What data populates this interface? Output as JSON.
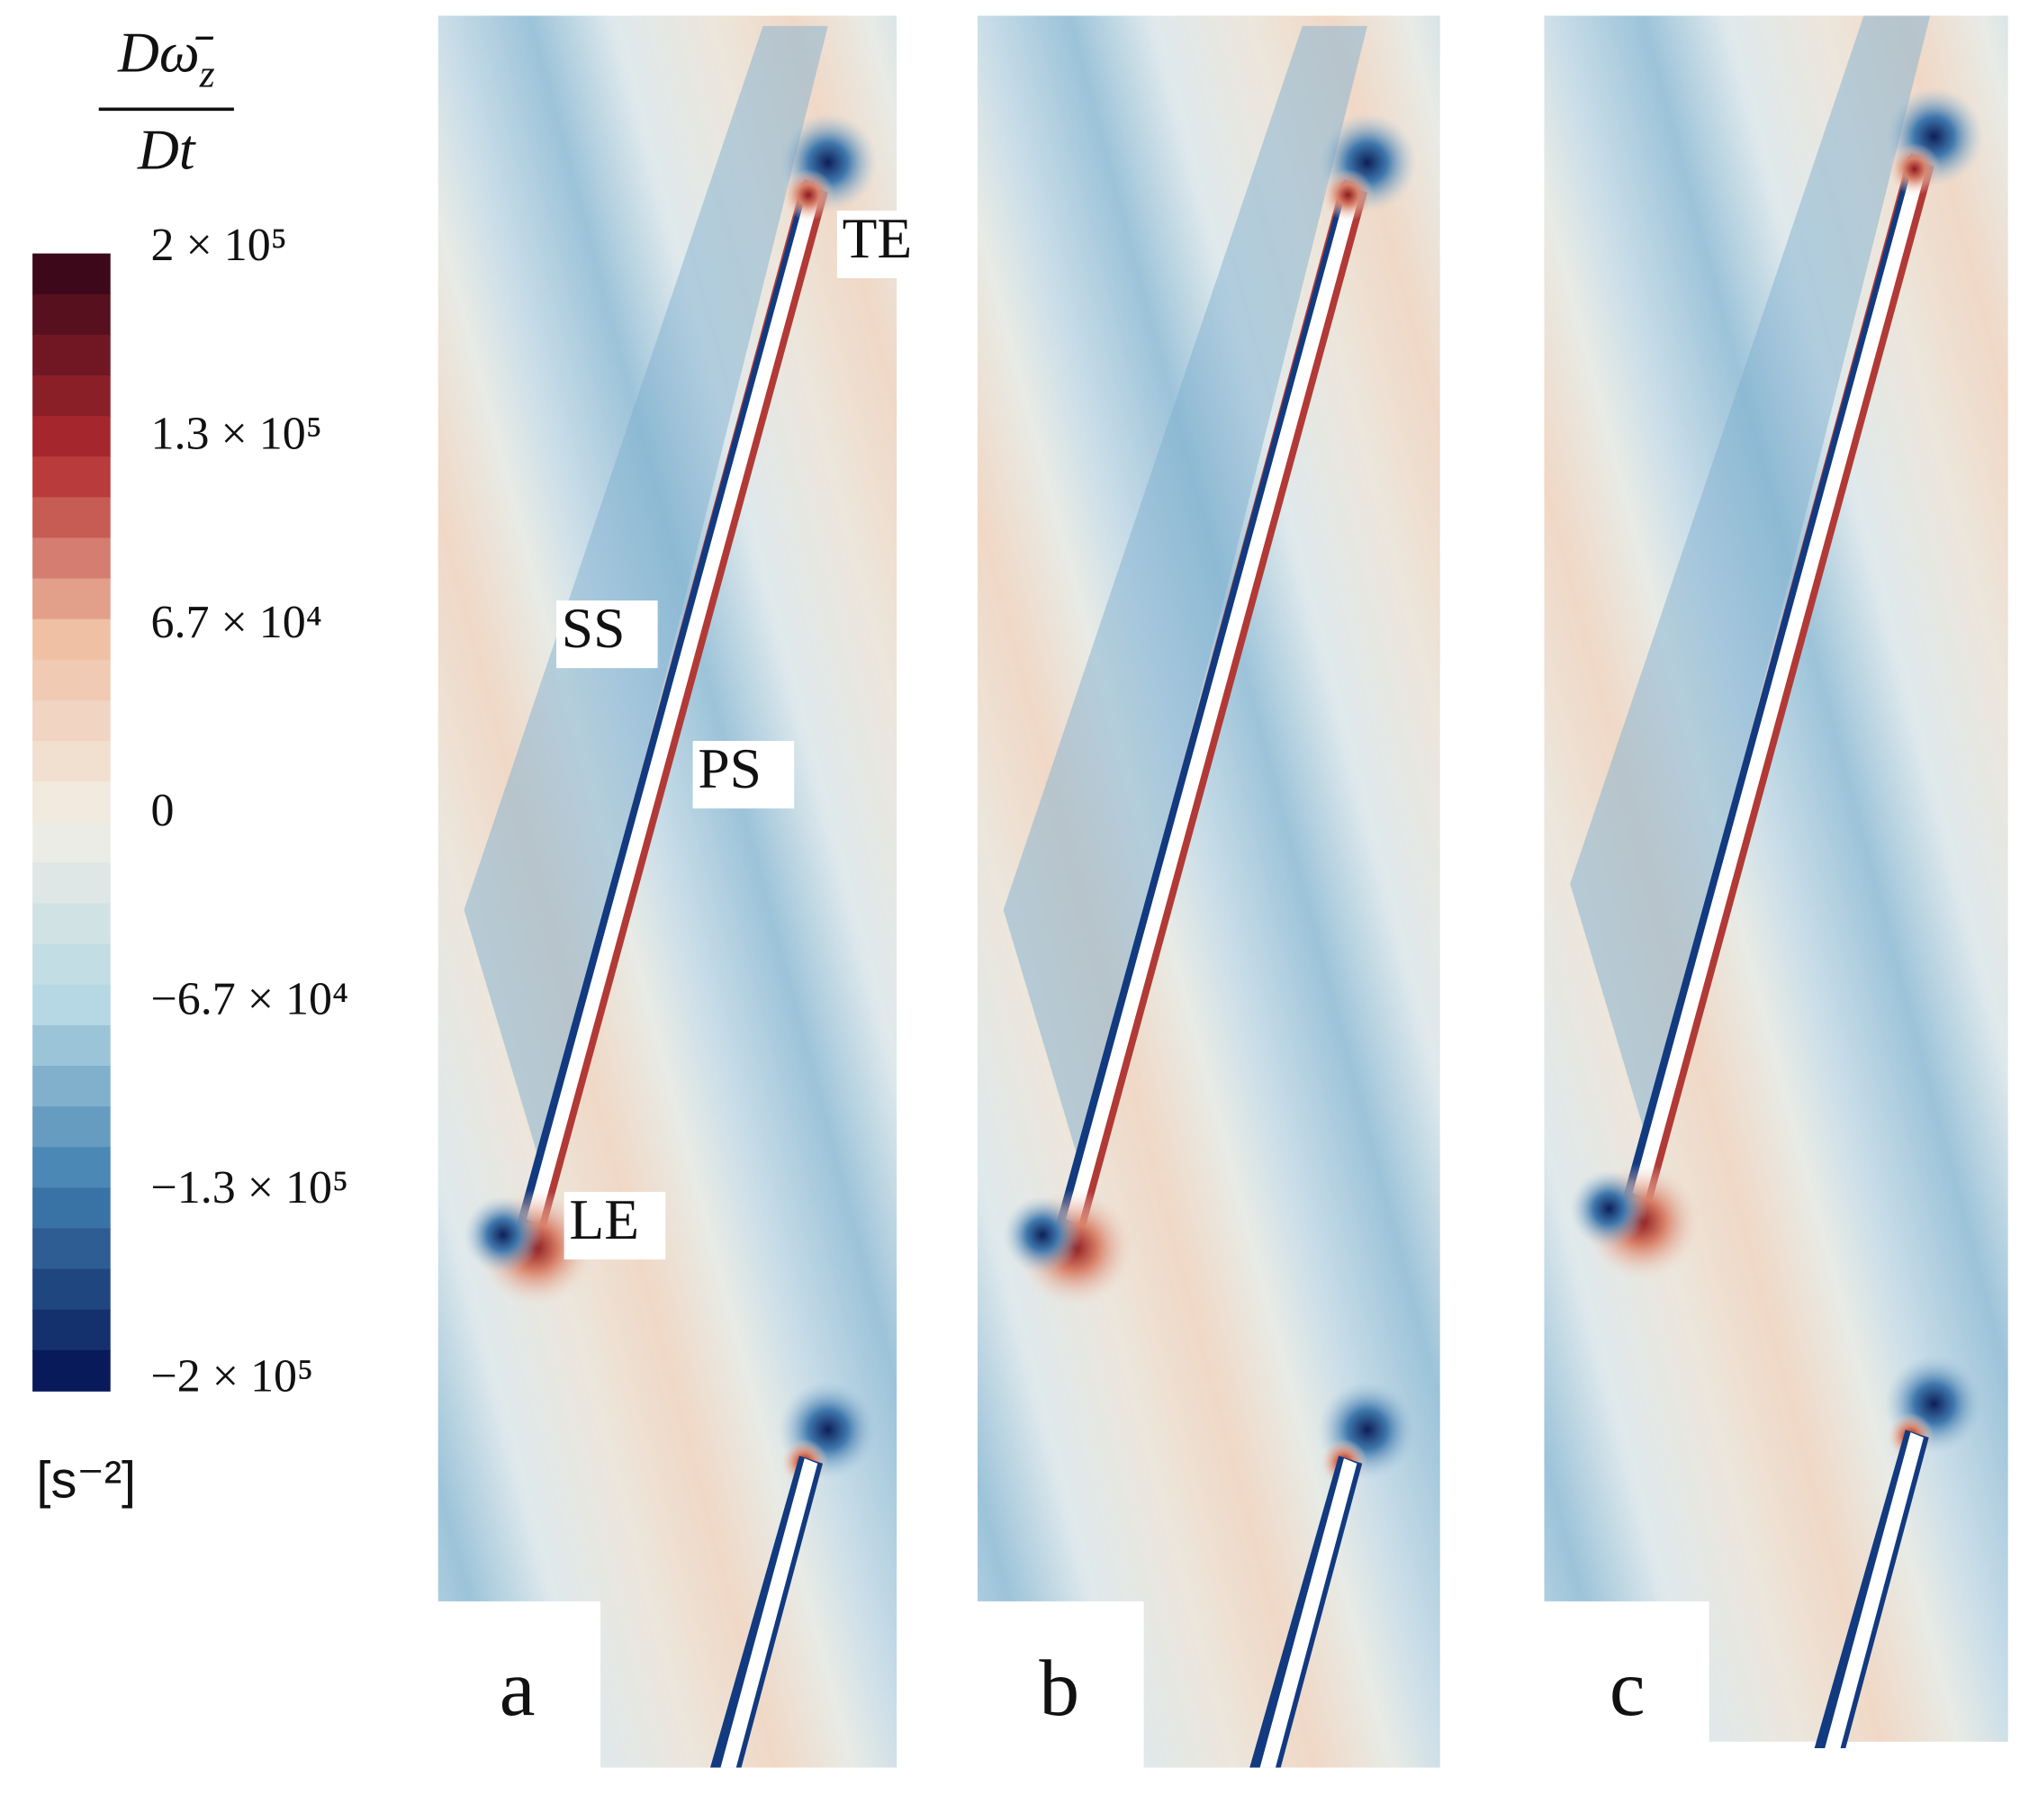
{
  "colorbar": {
    "title": {
      "numerator": "Dω̄",
      "numerator_subscript": "z",
      "denominator": "Dt"
    },
    "ticks": [
      "2 × 10⁵",
      "1.3 × 10⁵",
      "6.7 × 10⁴",
      "0",
      "−6.7 × 10⁴",
      "−1.3 × 10⁵",
      "−2 × 10⁵"
    ],
    "unit": "[s⁻²]"
  },
  "panels": [
    {
      "label": "a",
      "annotations": [
        "TE",
        "SS",
        "PS",
        "LE"
      ]
    },
    {
      "label": "b"
    },
    {
      "label": "c"
    }
  ]
}
